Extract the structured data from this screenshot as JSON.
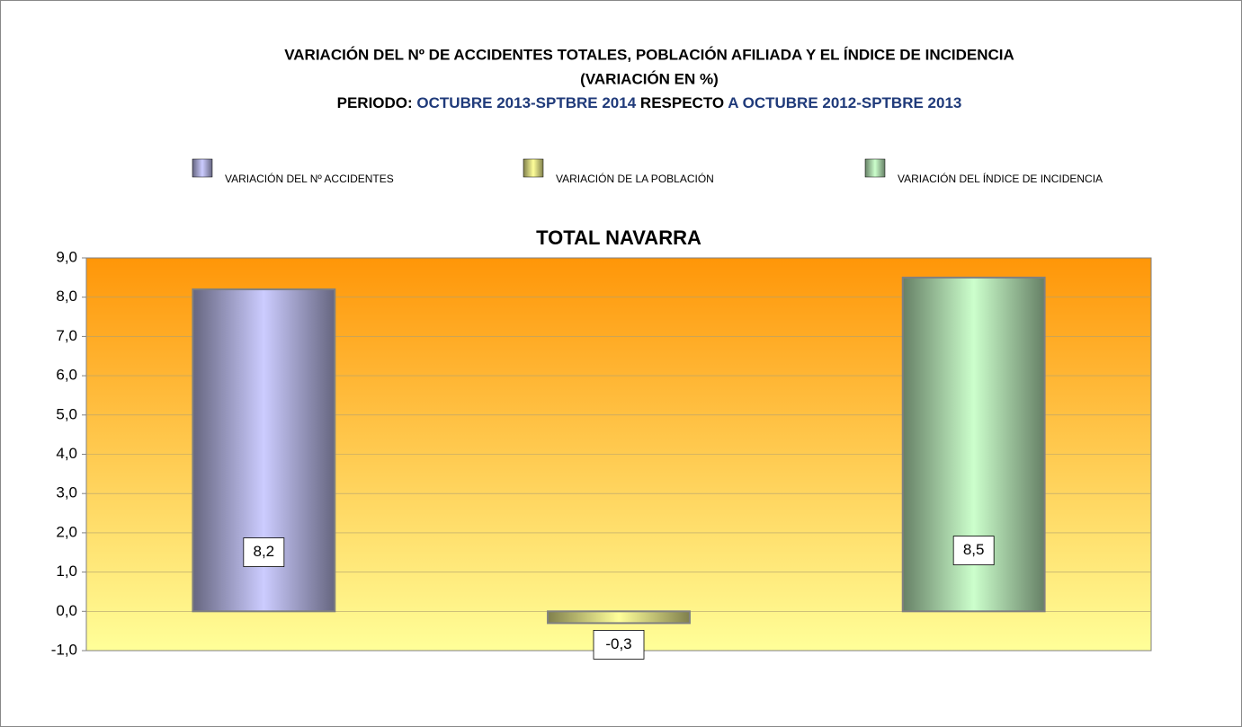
{
  "chart_data": {
    "type": "bar",
    "title": [
      "VARIACIÓN DEL Nº DE ACCIDENTES TOTALES, POBLACIÓN AFILIADA Y EL ÍNDICE DE INCIDENCIA",
      "(VARIACIÓN EN %)"
    ],
    "subtitle": [
      {
        "text": "PERIODO:",
        "color": "#000000"
      },
      {
        "text": "OCTUBRE 2013-SPTBRE 2014",
        "color": "#1f3a7a"
      },
      {
        "text": "RESPECTO",
        "color": "#000000"
      },
      {
        "text": "A OCTUBRE 2012-SPTBRE 2013",
        "color": "#1f3a7a"
      }
    ],
    "chart_title": "TOTAL NAVARRA",
    "categories": [
      null
    ],
    "series": [
      {
        "name": "VARIACIÓN DEL Nº ACCIDENTES",
        "color": "#ccccff",
        "values": [
          8.2
        ],
        "value_labels": [
          "8,2"
        ]
      },
      {
        "name": "VARIACIÓN DE LA POBLACIÓN",
        "color": "#ffff99",
        "values": [
          -0.3
        ],
        "value_labels": [
          "-0,3"
        ]
      },
      {
        "name": "VARIACIÓN DEL ÍNDICE DE  INCIDENCIA",
        "color": "#ccffcc",
        "values": [
          8.5
        ],
        "value_labels": [
          "8,5"
        ]
      }
    ],
    "ylim": [
      -1,
      9
    ],
    "yticks": [
      {
        "value": -1,
        "label": "-1,0"
      },
      {
        "value": 0,
        "label": "0,0"
      },
      {
        "value": 1,
        "label": "1,0"
      },
      {
        "value": 2,
        "label": "2,0"
      },
      {
        "value": 3,
        "label": "3,0"
      },
      {
        "value": 4,
        "label": "4,0"
      },
      {
        "value": 5,
        "label": "5,0"
      },
      {
        "value": 6,
        "label": "6,0"
      },
      {
        "value": 7,
        "label": "7,0"
      },
      {
        "value": 8,
        "label": "8,0"
      },
      {
        "value": 9,
        "label": "9,0"
      }
    ],
    "grid": true,
    "legend": "top"
  }
}
